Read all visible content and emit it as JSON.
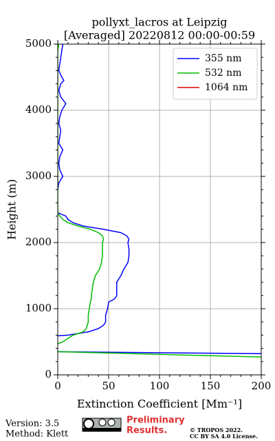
{
  "chart_data": {
    "type": "line",
    "title": "pollyxt_lacros at Leipzig",
    "subtitle": "[Averaged] 20220812 00:00-00:59",
    "x_label": "Extinction Coefficient [Mm⁻¹]",
    "y_label": "Height (m)",
    "y": [
      5000,
      4900,
      4800,
      4700,
      4600,
      4500,
      4450,
      4400,
      4300,
      4200,
      4100,
      4000,
      3900,
      3800,
      3700,
      3600,
      3500,
      3400,
      3300,
      3200,
      3100,
      3000,
      2900,
      2800,
      2600,
      2450,
      2400,
      2350,
      2300,
      2250,
      2200,
      2150,
      2100,
      2050,
      2000,
      1900,
      1800,
      1700,
      1600,
      1500,
      1400,
      1300,
      1200,
      1150,
      1100,
      1000,
      900,
      800,
      750,
      700,
      650,
      600,
      590,
      500,
      470,
      400,
      350,
      320,
      270
    ],
    "series": [
      {
        "name": "355 nm",
        "color": "#0000ff",
        "values": [
          5,
          4,
          3,
          2,
          1,
          4,
          6,
          3,
          1,
          3,
          8,
          4,
          2,
          1,
          3,
          2,
          1,
          5,
          2,
          1,
          2,
          5,
          1,
          0,
          null,
          0,
          8,
          10,
          15,
          25,
          45,
          62,
          68,
          70,
          69,
          70,
          70,
          69,
          65,
          62,
          58,
          58,
          58,
          56,
          50,
          49,
          47,
          47,
          45,
          40,
          30,
          10,
          0,
          null,
          null,
          null,
          0,
          200,
          null
        ]
      },
      {
        "name": "532 nm",
        "color": "#00bb00",
        "values": [
          1,
          0,
          0,
          0,
          0,
          0,
          0,
          0,
          0,
          0,
          0,
          0,
          0,
          0,
          0,
          0,
          0,
          0,
          0,
          0,
          0,
          0,
          0,
          0,
          0,
          0,
          2,
          5,
          10,
          20,
          32,
          40,
          44,
          45,
          44,
          44,
          44,
          43,
          41,
          37,
          35,
          34,
          33,
          33,
          32,
          31,
          30,
          30,
          29,
          28,
          25,
          15,
          14,
          5,
          0,
          null,
          0,
          75,
          200
        ]
      },
      {
        "name": "1064 nm",
        "color": "#dd0000",
        "values": [
          null,
          null,
          null,
          null,
          null,
          null,
          null,
          null,
          null,
          null,
          null,
          null,
          null,
          null,
          null,
          null,
          null,
          null,
          null,
          null,
          null,
          null,
          null,
          null,
          null,
          null,
          null,
          null,
          null,
          null,
          null,
          null,
          null,
          null,
          null,
          null,
          null,
          null,
          null,
          null,
          null,
          null,
          null,
          null,
          null,
          null,
          null,
          null,
          null,
          null,
          null,
          null,
          null,
          null,
          null,
          null,
          null,
          null,
          null
        ]
      }
    ],
    "xlim": [
      0,
      200
    ],
    "xticks": [
      0,
      50,
      100,
      150,
      200
    ],
    "ylim": [
      0,
      5000
    ],
    "yticks": [
      0,
      1000,
      2000,
      3000,
      4000,
      5000
    ],
    "grid": true,
    "legend": "upper right"
  },
  "footer": {
    "version": "Version: 3.5",
    "method": "Method: Klett",
    "preliminary": "Preliminary",
    "results": "Results.",
    "copyright": "© TROPOS 2022.",
    "license": "CC BY SA 4.0 License."
  }
}
